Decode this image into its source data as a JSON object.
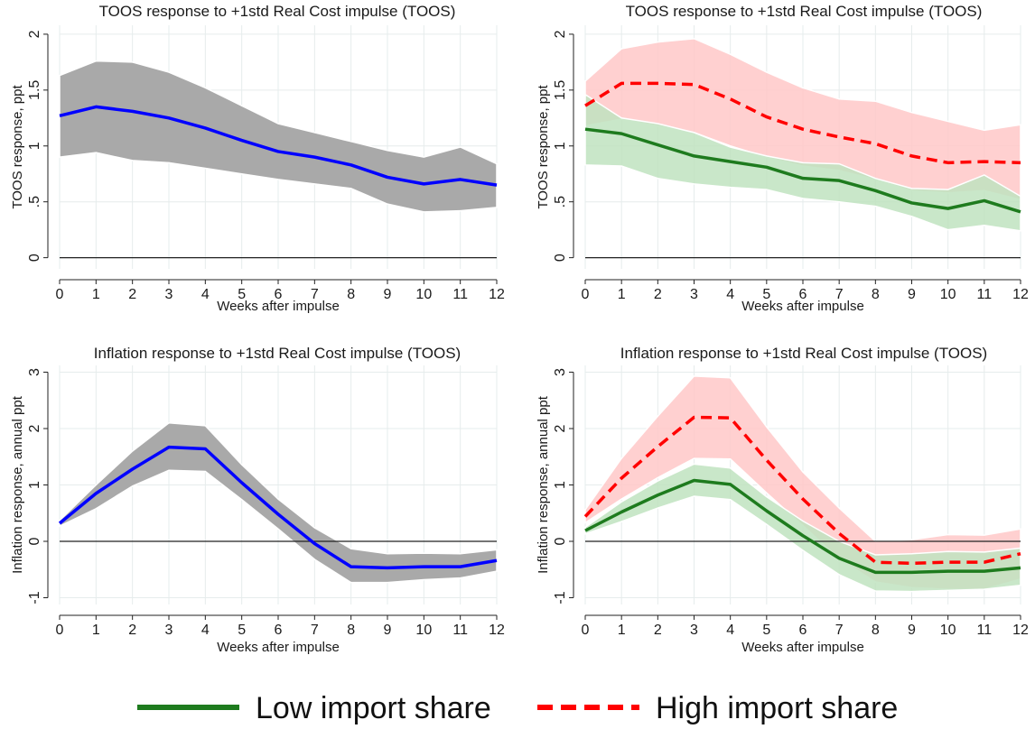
{
  "colors": {
    "all_line": "#0000ff",
    "all_band": "#a9a9a9",
    "low_line": "#1e7b1e",
    "low_band": "#bfe3bf",
    "high_line": "#ff0000",
    "high_band": "#ffc8c8"
  },
  "legend": {
    "position": "bottom-center",
    "low_label": "Low import share",
    "high_label": "High import share"
  },
  "chart_data": [
    {
      "type": "line",
      "title": "TOOS response to +1std Real Cost impulse (TOOS)",
      "xlabel": "Weeks after impulse",
      "ylabel": "TOOS response, ppt",
      "x": [
        0,
        1,
        2,
        3,
        4,
        5,
        6,
        7,
        8,
        9,
        10,
        11,
        12
      ],
      "xticks": [
        "0",
        "1",
        "2",
        "3",
        "4",
        "5",
        "6",
        "7",
        "8",
        "9",
        "10",
        "11",
        "12"
      ],
      "yticks": [
        0,
        0.5,
        1,
        1.5,
        2
      ],
      "ytick_labels": [
        "0",
        ".5",
        "1",
        "1.5",
        "2"
      ],
      "xlim": [
        0,
        12
      ],
      "ylim": [
        -0.1,
        2.08
      ],
      "grid": true,
      "zero_line": true,
      "series": [
        {
          "key": "all",
          "style": "solid",
          "values": [
            1.27,
            1.35,
            1.31,
            1.25,
            1.16,
            1.05,
            0.95,
            0.9,
            0.83,
            0.72,
            0.66,
            0.7,
            0.65
          ],
          "lower": [
            0.9,
            0.94,
            0.87,
            0.85,
            0.8,
            0.75,
            0.7,
            0.66,
            0.62,
            0.48,
            0.41,
            0.42,
            0.45
          ],
          "upper": [
            1.63,
            1.76,
            1.75,
            1.66,
            1.52,
            1.36,
            1.2,
            1.12,
            1.04,
            0.96,
            0.9,
            0.99,
            0.84
          ]
        }
      ]
    },
    {
      "type": "line",
      "title": "TOOS response to +1std Real Cost impulse (TOOS)",
      "xlabel": "Weeks after impulse",
      "ylabel": "TOOS response, ppt",
      "x": [
        0,
        1,
        2,
        3,
        4,
        5,
        6,
        7,
        8,
        9,
        10,
        11,
        12
      ],
      "xticks": [
        "0",
        "1",
        "2",
        "3",
        "4",
        "5",
        "6",
        "7",
        "8",
        "9",
        "10",
        "11",
        "12"
      ],
      "yticks": [
        0,
        0.5,
        1,
        1.5,
        2
      ],
      "ytick_labels": [
        "0",
        ".5",
        "1",
        "1.5",
        "2"
      ],
      "xlim": [
        0,
        12
      ],
      "ylim": [
        -0.1,
        2.08
      ],
      "grid": true,
      "zero_line": true,
      "series": [
        {
          "key": "high",
          "name": "High import share",
          "style": "dashed",
          "values": [
            1.36,
            1.56,
            1.56,
            1.55,
            1.42,
            1.26,
            1.15,
            1.08,
            1.02,
            0.91,
            0.85,
            0.86,
            0.85
          ],
          "lower": [
            1.18,
            1.24,
            1.18,
            1.12,
            1.0,
            0.9,
            0.82,
            0.78,
            0.7,
            0.6,
            0.58,
            0.6,
            0.52
          ],
          "upper": [
            1.58,
            1.87,
            1.93,
            1.96,
            1.82,
            1.66,
            1.52,
            1.42,
            1.4,
            1.3,
            1.22,
            1.14,
            1.19
          ]
        },
        {
          "key": "low",
          "name": "Low import share",
          "style": "solid",
          "values": [
            1.15,
            1.11,
            1.01,
            0.91,
            0.86,
            0.81,
            0.71,
            0.69,
            0.6,
            0.49,
            0.44,
            0.51,
            0.41
          ],
          "lower": [
            0.83,
            0.82,
            0.71,
            0.66,
            0.63,
            0.61,
            0.53,
            0.5,
            0.46,
            0.37,
            0.25,
            0.29,
            0.24
          ],
          "upper": [
            1.46,
            1.25,
            1.2,
            1.12,
            0.99,
            0.91,
            0.85,
            0.84,
            0.71,
            0.62,
            0.61,
            0.74,
            0.55
          ]
        }
      ]
    },
    {
      "type": "line",
      "title": "Inflation response to +1std Real Cost impulse (TOOS)",
      "xlabel": "Weeks after impulse",
      "ylabel": "Inflation response, annual ppt",
      "x": [
        0,
        1,
        2,
        3,
        4,
        5,
        6,
        7,
        8,
        9,
        10,
        11,
        12
      ],
      "xticks": [
        "0",
        "1",
        "2",
        "3",
        "4",
        "5",
        "6",
        "7",
        "8",
        "9",
        "10",
        "11",
        "12"
      ],
      "yticks": [
        -1,
        0,
        1,
        2,
        3
      ],
      "ytick_labels": [
        "-1",
        "0",
        "1",
        "2",
        "3"
      ],
      "xlim": [
        0,
        12
      ],
      "ylim": [
        -1.12,
        3.12
      ],
      "grid": true,
      "zero_line": true,
      "series": [
        {
          "key": "all",
          "style": "solid",
          "values": [
            0.32,
            0.85,
            1.28,
            1.67,
            1.64,
            1.04,
            0.48,
            -0.04,
            -0.45,
            -0.47,
            -0.45,
            -0.45,
            -0.34
          ],
          "lower": [
            0.27,
            0.58,
            0.98,
            1.26,
            1.24,
            0.74,
            0.22,
            -0.32,
            -0.73,
            -0.73,
            -0.68,
            -0.65,
            -0.53
          ],
          "upper": [
            0.37,
            1.0,
            1.6,
            2.1,
            2.05,
            1.36,
            0.75,
            0.24,
            -0.13,
            -0.22,
            -0.21,
            -0.22,
            -0.15
          ]
        }
      ]
    },
    {
      "type": "line",
      "title": "Inflation response to +1std Real Cost impulse (TOOS)",
      "xlabel": "Weeks after impulse",
      "ylabel": "Inflation response, annual ppt",
      "x": [
        0,
        1,
        2,
        3,
        4,
        5,
        6,
        7,
        8,
        9,
        10,
        11,
        12
      ],
      "xticks": [
        "0",
        "1",
        "2",
        "3",
        "4",
        "5",
        "6",
        "7",
        "8",
        "9",
        "10",
        "11",
        "12"
      ],
      "yticks": [
        -1,
        0,
        1,
        2,
        3
      ],
      "ytick_labels": [
        "-1",
        "0",
        "1",
        "2",
        "3"
      ],
      "xlim": [
        0,
        12
      ],
      "ylim": [
        -1.12,
        3.12
      ],
      "grid": true,
      "zero_line": true,
      "series": [
        {
          "key": "high",
          "name": "High import share",
          "style": "dashed",
          "values": [
            0.44,
            1.12,
            1.68,
            2.2,
            2.19,
            1.44,
            0.75,
            0.14,
            -0.37,
            -0.39,
            -0.37,
            -0.37,
            -0.22
          ],
          "lower": [
            0.33,
            0.75,
            1.13,
            1.47,
            1.46,
            0.86,
            0.28,
            -0.31,
            -0.72,
            -0.82,
            -0.85,
            -0.85,
            -0.67
          ],
          "upper": [
            0.56,
            1.47,
            2.22,
            2.93,
            2.9,
            2.03,
            1.23,
            0.59,
            0.0,
            0.03,
            0.12,
            0.11,
            0.22
          ]
        },
        {
          "key": "low",
          "name": "Low import share",
          "style": "solid",
          "values": [
            0.19,
            0.52,
            0.82,
            1.08,
            1.01,
            0.54,
            0.1,
            -0.3,
            -0.55,
            -0.55,
            -0.53,
            -0.53,
            -0.47
          ],
          "lower": [
            0.13,
            0.35,
            0.59,
            0.8,
            0.74,
            0.3,
            -0.16,
            -0.59,
            -0.88,
            -0.89,
            -0.87,
            -0.85,
            -0.78
          ],
          "upper": [
            0.25,
            0.7,
            1.07,
            1.37,
            1.3,
            0.79,
            0.36,
            0.0,
            -0.24,
            -0.22,
            -0.18,
            -0.19,
            -0.12
          ]
        }
      ]
    }
  ]
}
